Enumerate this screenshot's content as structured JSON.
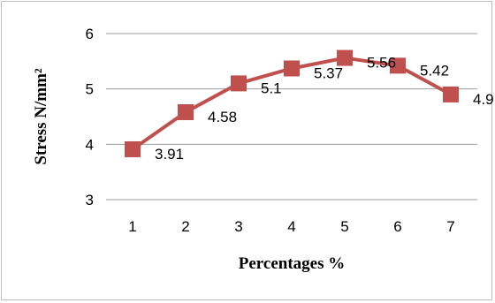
{
  "chart_data": {
    "type": "line",
    "title": "",
    "xlabel": "Percentages %",
    "ylabel": "Stress N/mm²",
    "categories": [
      "1",
      "2",
      "3",
      "4",
      "5",
      "6",
      "7"
    ],
    "series": [
      {
        "values": [
          3.91,
          4.58,
          5.1,
          5.37,
          5.56,
          5.42,
          4.9
        ],
        "labels": [
          "3.91",
          "4.58",
          "5.1",
          "5.37",
          "5.56",
          "5.42",
          "4.9"
        ],
        "color": "#c0504d"
      }
    ],
    "ylim": [
      3,
      6
    ],
    "yticks": [
      "3",
      "4",
      "5",
      "6"
    ],
    "grid": true,
    "legend": "none",
    "marker": "square"
  }
}
